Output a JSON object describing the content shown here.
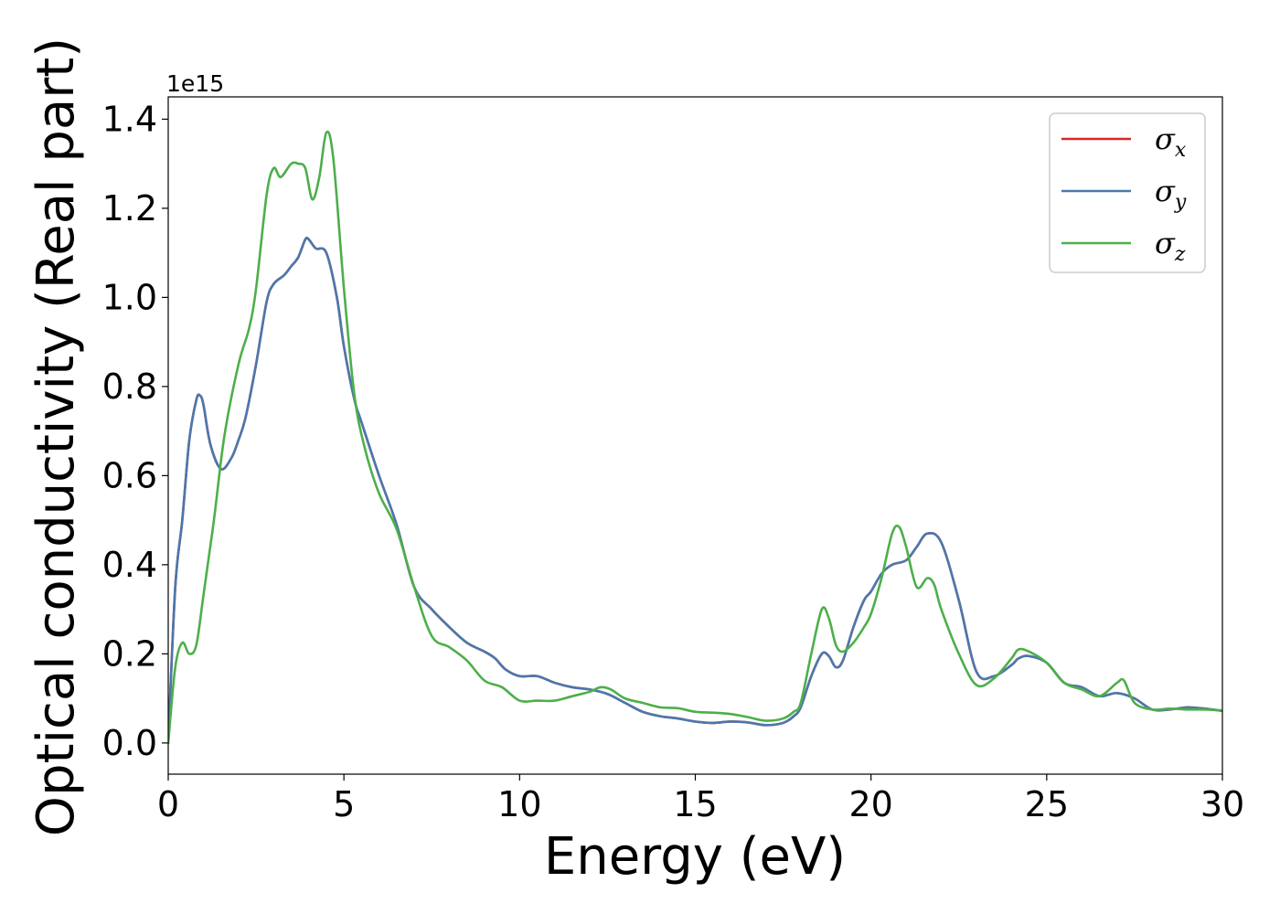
{
  "chart_data": {
    "type": "line",
    "title": "",
    "xlabel": "Energy (eV)",
    "ylabel": "Optical conductivity (Real part)",
    "y_offset_text": "1e15",
    "xlim": [
      0,
      30
    ],
    "ylim": [
      -0.07,
      1.45
    ],
    "x_ticks": [
      0,
      5,
      10,
      15,
      20,
      25,
      30
    ],
    "x_tick_labels": [
      "0",
      "5",
      "10",
      "15",
      "20",
      "25",
      "30"
    ],
    "y_ticks": [
      0.0,
      0.2,
      0.4,
      0.6,
      0.8,
      1.0,
      1.2,
      1.4
    ],
    "y_tick_labels": [
      "0.0",
      "0.2",
      "0.4",
      "0.6",
      "0.8",
      "1.0",
      "1.2",
      "1.4"
    ],
    "grid": false,
    "legend_position": "top-right",
    "series": [
      {
        "name": "σx",
        "symbol": "σ",
        "subscript": "x",
        "color": "#d62728",
        "x": [
          0,
          0.2,
          0.4,
          0.6,
          0.8,
          0.9,
          1.0,
          1.2,
          1.5,
          1.8,
          2.0,
          2.2,
          2.5,
          2.8,
          3.0,
          3.3,
          3.5,
          3.7,
          3.9,
          4.0,
          4.2,
          4.5,
          4.8,
          5.0,
          5.3,
          5.5,
          6.0,
          6.5,
          7.0,
          7.5,
          8.0,
          8.5,
          9.0,
          9.3,
          9.6,
          10.0,
          10.5,
          11.0,
          11.5,
          12.0,
          12.5,
          13.0,
          13.5,
          14.0,
          14.5,
          15.0,
          15.5,
          16.0,
          16.5,
          17.0,
          17.5,
          17.8,
          18.0,
          18.3,
          18.6,
          18.8,
          19.0,
          19.2,
          19.5,
          19.8,
          20.0,
          20.3,
          20.6,
          21.0,
          21.3,
          21.6,
          22.0,
          22.5,
          23.0,
          23.5,
          24.0,
          24.2,
          24.5,
          25.0,
          25.5,
          26.0,
          26.5,
          27.0,
          27.5,
          28.0,
          28.5,
          29.0,
          29.5,
          30.0
        ],
        "y": [
          0.0,
          0.35,
          0.5,
          0.68,
          0.77,
          0.78,
          0.76,
          0.67,
          0.615,
          0.64,
          0.68,
          0.73,
          0.85,
          0.99,
          1.03,
          1.05,
          1.07,
          1.09,
          1.13,
          1.13,
          1.11,
          1.1,
          1.0,
          0.89,
          0.77,
          0.72,
          0.6,
          0.49,
          0.35,
          0.3,
          0.26,
          0.225,
          0.205,
          0.19,
          0.165,
          0.15,
          0.15,
          0.135,
          0.125,
          0.12,
          0.11,
          0.09,
          0.07,
          0.06,
          0.055,
          0.048,
          0.045,
          0.048,
          0.046,
          0.04,
          0.045,
          0.06,
          0.08,
          0.15,
          0.2,
          0.195,
          0.17,
          0.185,
          0.26,
          0.32,
          0.34,
          0.38,
          0.4,
          0.41,
          0.44,
          0.47,
          0.45,
          0.32,
          0.16,
          0.15,
          0.175,
          0.19,
          0.195,
          0.18,
          0.135,
          0.125,
          0.105,
          0.112,
          0.1,
          0.075,
          0.075,
          0.08,
          0.077,
          0.072
        ]
      },
      {
        "name": "σy",
        "symbol": "σ",
        "subscript": "y",
        "color": "#4a78ad",
        "x": [
          0,
          0.2,
          0.4,
          0.6,
          0.8,
          0.9,
          1.0,
          1.2,
          1.5,
          1.8,
          2.0,
          2.2,
          2.5,
          2.8,
          3.0,
          3.3,
          3.5,
          3.7,
          3.9,
          4.0,
          4.2,
          4.5,
          4.8,
          5.0,
          5.3,
          5.5,
          6.0,
          6.5,
          7.0,
          7.5,
          8.0,
          8.5,
          9.0,
          9.3,
          9.6,
          10.0,
          10.5,
          11.0,
          11.5,
          12.0,
          12.5,
          13.0,
          13.5,
          14.0,
          14.5,
          15.0,
          15.5,
          16.0,
          16.5,
          17.0,
          17.5,
          17.8,
          18.0,
          18.3,
          18.6,
          18.8,
          19.0,
          19.2,
          19.5,
          19.8,
          20.0,
          20.3,
          20.6,
          21.0,
          21.3,
          21.6,
          22.0,
          22.5,
          23.0,
          23.5,
          24.0,
          24.2,
          24.5,
          25.0,
          25.5,
          26.0,
          26.5,
          27.0,
          27.5,
          28.0,
          28.5,
          29.0,
          29.5,
          30.0
        ],
        "y": [
          0.0,
          0.35,
          0.5,
          0.68,
          0.77,
          0.78,
          0.76,
          0.67,
          0.615,
          0.64,
          0.68,
          0.73,
          0.85,
          0.99,
          1.03,
          1.05,
          1.07,
          1.09,
          1.13,
          1.13,
          1.11,
          1.1,
          1.0,
          0.89,
          0.77,
          0.72,
          0.6,
          0.49,
          0.35,
          0.3,
          0.26,
          0.225,
          0.205,
          0.19,
          0.165,
          0.15,
          0.15,
          0.135,
          0.125,
          0.12,
          0.11,
          0.09,
          0.07,
          0.06,
          0.055,
          0.048,
          0.045,
          0.048,
          0.046,
          0.04,
          0.045,
          0.06,
          0.08,
          0.15,
          0.2,
          0.195,
          0.17,
          0.185,
          0.26,
          0.32,
          0.34,
          0.38,
          0.4,
          0.41,
          0.44,
          0.47,
          0.45,
          0.32,
          0.16,
          0.15,
          0.175,
          0.19,
          0.195,
          0.18,
          0.135,
          0.125,
          0.105,
          0.112,
          0.1,
          0.075,
          0.075,
          0.08,
          0.077,
          0.072
        ]
      },
      {
        "name": "σz",
        "symbol": "σ",
        "subscript": "z",
        "color": "#4daf4a",
        "x": [
          0,
          0.2,
          0.4,
          0.6,
          0.8,
          1.0,
          1.3,
          1.6,
          2.0,
          2.3,
          2.5,
          2.8,
          3.0,
          3.2,
          3.5,
          3.7,
          3.9,
          4.1,
          4.3,
          4.5,
          4.7,
          5.0,
          5.3,
          5.6,
          6.0,
          6.5,
          7.0,
          7.5,
          8.0,
          8.5,
          9.0,
          9.5,
          10.0,
          10.5,
          11.0,
          11.5,
          12.0,
          12.3,
          12.6,
          13.0,
          13.5,
          14.0,
          14.5,
          15.0,
          15.5,
          16.0,
          16.5,
          17.0,
          17.5,
          17.8,
          18.0,
          18.3,
          18.6,
          18.8,
          19.0,
          19.2,
          19.5,
          19.8,
          20.0,
          20.3,
          20.6,
          20.8,
          21.0,
          21.3,
          21.6,
          21.8,
          22.0,
          22.5,
          23.0,
          23.5,
          24.0,
          24.2,
          24.5,
          25.0,
          25.5,
          26.0,
          26.5,
          27.0,
          27.2,
          27.5,
          28.0,
          28.5,
          29.0,
          29.5,
          30.0
        ],
        "y": [
          0.0,
          0.17,
          0.225,
          0.2,
          0.22,
          0.33,
          0.5,
          0.69,
          0.85,
          0.93,
          1.02,
          1.23,
          1.29,
          1.27,
          1.3,
          1.3,
          1.29,
          1.22,
          1.27,
          1.37,
          1.31,
          1.02,
          0.78,
          0.66,
          0.56,
          0.48,
          0.35,
          0.24,
          0.215,
          0.185,
          0.14,
          0.125,
          0.095,
          0.095,
          0.095,
          0.105,
          0.115,
          0.125,
          0.12,
          0.1,
          0.09,
          0.08,
          0.078,
          0.07,
          0.068,
          0.065,
          0.058,
          0.05,
          0.055,
          0.07,
          0.09,
          0.2,
          0.3,
          0.28,
          0.22,
          0.205,
          0.225,
          0.26,
          0.29,
          0.37,
          0.47,
          0.485,
          0.44,
          0.35,
          0.37,
          0.355,
          0.3,
          0.2,
          0.13,
          0.145,
          0.19,
          0.21,
          0.205,
          0.18,
          0.135,
          0.12,
          0.105,
          0.135,
          0.14,
          0.09,
          0.075,
          0.077,
          0.075,
          0.075,
          0.073
        ]
      }
    ]
  }
}
